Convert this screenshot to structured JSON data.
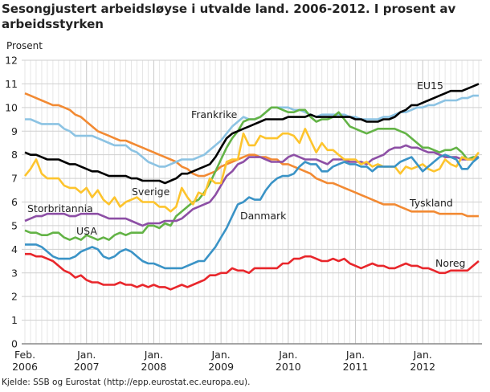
{
  "chart_data": {
    "type": "line",
    "title": "Sesongjustert arbeidsløyse i utvalde land. 2006-2012. I prosent av arbeidsstyrken",
    "ylabel": "Prosent",
    "xlabel": "",
    "source": "Kjelde: SSB og Eurostat (http://epp.eurostat.ec.europa.eu).",
    "ylim": [
      0,
      12
    ],
    "yticks": [
      "0",
      "1",
      "2",
      "3",
      "4",
      "5",
      "6",
      "7",
      "8",
      "9",
      "10",
      "11",
      "12"
    ],
    "x_start": "2006-02",
    "x_end": "2012-11",
    "x_frequency": "monthly",
    "xticks": [
      {
        "line1": "Feb.",
        "line2": "2006"
      },
      {
        "line1": "Jan.",
        "line2": "2007"
      },
      {
        "line1": "Jan.",
        "line2": "2008"
      },
      {
        "line1": "Jan.",
        "line2": "2009"
      },
      {
        "line1": "Jan.",
        "line2": "2010"
      },
      {
        "line1": "Jan.",
        "line2": "2011"
      },
      {
        "line1": "Jan.",
        "line2": "2012"
      }
    ],
    "grid": true,
    "legend": "inline labels",
    "series": [
      {
        "name": "Tyskland",
        "color": "#f28a33",
        "values": [
          10.6,
          10.5,
          10.4,
          10.3,
          10.2,
          10.1,
          10.1,
          10.0,
          9.9,
          9.7,
          9.6,
          9.4,
          9.2,
          9.0,
          8.9,
          8.8,
          8.7,
          8.6,
          8.6,
          8.5,
          8.4,
          8.3,
          8.2,
          8.1,
          8.0,
          7.9,
          7.8,
          7.7,
          7.5,
          7.4,
          7.2,
          7.1,
          7.1,
          7.2,
          7.3,
          7.5,
          7.6,
          7.7,
          7.8,
          7.9,
          8.0,
          8.0,
          7.9,
          7.9,
          7.8,
          7.8,
          7.6,
          7.6,
          7.5,
          7.4,
          7.3,
          7.2,
          7.0,
          6.9,
          6.8,
          6.8,
          6.7,
          6.6,
          6.5,
          6.4,
          6.3,
          6.2,
          6.1,
          6.0,
          5.9,
          5.9,
          5.9,
          5.8,
          5.7,
          5.6,
          5.6,
          5.6,
          5.6,
          5.6,
          5.5,
          5.5,
          5.5,
          5.5,
          5.5,
          5.4,
          5.4,
          5.4
        ]
      },
      {
        "name": "Frankrike",
        "color": "#8cc3e3",
        "values": [
          9.5,
          9.5,
          9.4,
          9.3,
          9.3,
          9.3,
          9.3,
          9.1,
          9.0,
          8.8,
          8.8,
          8.8,
          8.8,
          8.7,
          8.6,
          8.5,
          8.4,
          8.4,
          8.4,
          8.2,
          8.1,
          7.9,
          7.7,
          7.6,
          7.5,
          7.5,
          7.6,
          7.7,
          7.8,
          7.8,
          7.8,
          7.9,
          8.0,
          8.2,
          8.4,
          8.6,
          8.9,
          9.2,
          9.4,
          9.6,
          9.5,
          9.5,
          9.6,
          9.8,
          10.0,
          10.0,
          10.0,
          10.0,
          9.9,
          9.9,
          9.8,
          9.7,
          9.6,
          9.7,
          9.7,
          9.7,
          9.7,
          9.7,
          9.6,
          9.6,
          9.5,
          9.5,
          9.5,
          9.5,
          9.6,
          9.6,
          9.7,
          9.8,
          9.8,
          9.9,
          10.0,
          10.0,
          10.1,
          10.1,
          10.2,
          10.3,
          10.3,
          10.3,
          10.4,
          10.4,
          10.5,
          10.5
        ]
      },
      {
        "name": "USA",
        "color": "#63b346",
        "values": [
          4.8,
          4.7,
          4.7,
          4.6,
          4.6,
          4.7,
          4.7,
          4.5,
          4.4,
          4.5,
          4.4,
          4.6,
          4.5,
          4.4,
          4.5,
          4.4,
          4.6,
          4.7,
          4.6,
          4.7,
          4.7,
          4.7,
          5.0,
          5.0,
          4.9,
          5.1,
          5.0,
          5.4,
          5.6,
          5.8,
          6.0,
          6.1,
          6.4,
          6.8,
          7.3,
          7.8,
          8.3,
          8.7,
          9.0,
          9.4,
          9.5,
          9.5,
          9.6,
          9.8,
          10.0,
          10.0,
          9.9,
          9.8,
          9.8,
          9.9,
          9.9,
          9.6,
          9.4,
          9.5,
          9.5,
          9.6,
          9.8,
          9.5,
          9.2,
          9.1,
          9.0,
          8.9,
          9.0,
          9.1,
          9.1,
          9.1,
          9.1,
          9.0,
          8.9,
          8.7,
          8.5,
          8.3,
          8.3,
          8.2,
          8.1,
          8.2,
          8.2,
          8.3,
          8.1,
          7.8,
          7.9,
          7.9
        ]
      },
      {
        "name": "Storbritannia",
        "color": "#8d4fa5",
        "values": [
          5.2,
          5.3,
          5.4,
          5.4,
          5.5,
          5.5,
          5.5,
          5.5,
          5.4,
          5.4,
          5.5,
          5.5,
          5.5,
          5.5,
          5.4,
          5.3,
          5.3,
          5.3,
          5.3,
          5.2,
          5.1,
          5.0,
          5.1,
          5.1,
          5.1,
          5.2,
          5.2,
          5.2,
          5.3,
          5.5,
          5.7,
          5.8,
          5.9,
          6.0,
          6.3,
          6.7,
          7.1,
          7.3,
          7.6,
          7.7,
          7.9,
          7.9,
          7.9,
          7.8,
          7.7,
          7.7,
          7.7,
          7.9,
          8.0,
          7.9,
          7.8,
          7.8,
          7.8,
          7.7,
          7.6,
          7.8,
          7.8,
          7.8,
          7.7,
          7.7,
          7.7,
          7.6,
          7.8,
          7.9,
          8.0,
          8.2,
          8.3,
          8.3,
          8.4,
          8.3,
          8.3,
          8.2,
          8.1,
          8.1,
          8.0,
          7.9,
          7.9,
          7.9,
          7.8,
          7.8,
          7.8,
          7.9
        ]
      },
      {
        "name": "Sverige",
        "color": "#fdc42d",
        "values": [
          7.1,
          7.4,
          7.8,
          7.2,
          7.0,
          7.0,
          7.0,
          6.7,
          6.6,
          6.6,
          6.4,
          6.6,
          6.2,
          6.5,
          6.1,
          5.9,
          6.2,
          5.8,
          6.0,
          6.1,
          6.2,
          6.0,
          6.0,
          6.0,
          5.8,
          5.8,
          5.6,
          5.8,
          6.6,
          6.2,
          5.9,
          6.4,
          6.3,
          7.0,
          6.8,
          6.8,
          7.7,
          7.8,
          7.8,
          8.9,
          8.4,
          8.4,
          8.8,
          8.7,
          8.7,
          8.7,
          8.9,
          8.9,
          8.8,
          8.5,
          9.1,
          8.6,
          8.1,
          8.5,
          8.2,
          8.2,
          8.0,
          7.8,
          7.8,
          7.8,
          7.6,
          7.7,
          7.5,
          7.6,
          7.5,
          7.5,
          7.5,
          7.2,
          7.5,
          7.4,
          7.5,
          7.6,
          7.4,
          7.3,
          7.4,
          7.8,
          7.6,
          7.5,
          7.9,
          7.8,
          7.8,
          8.1
        ]
      },
      {
        "name": "Danmark",
        "color": "#3a93c6",
        "values": [
          4.2,
          4.2,
          4.2,
          4.1,
          3.9,
          3.7,
          3.6,
          3.6,
          3.6,
          3.7,
          3.9,
          4.0,
          4.1,
          4.0,
          3.7,
          3.6,
          3.7,
          3.9,
          4.0,
          3.9,
          3.7,
          3.5,
          3.4,
          3.4,
          3.3,
          3.2,
          3.2,
          3.2,
          3.2,
          3.3,
          3.4,
          3.5,
          3.5,
          3.8,
          4.1,
          4.5,
          4.9,
          5.4,
          5.9,
          6.0,
          6.2,
          6.1,
          6.1,
          6.5,
          6.8,
          7.0,
          7.1,
          7.1,
          7.2,
          7.5,
          7.7,
          7.6,
          7.6,
          7.3,
          7.3,
          7.5,
          7.6,
          7.7,
          7.6,
          7.6,
          7.5,
          7.5,
          7.3,
          7.5,
          7.5,
          7.5,
          7.5,
          7.7,
          7.8,
          7.9,
          7.6,
          7.3,
          7.5,
          7.7,
          7.9,
          8.0,
          7.9,
          7.8,
          7.4,
          7.4,
          7.7,
          7.9
        ]
      },
      {
        "name": "EU15",
        "color": "#000000",
        "values": [
          8.1,
          8.0,
          8.0,
          7.9,
          7.8,
          7.8,
          7.8,
          7.7,
          7.6,
          7.6,
          7.5,
          7.4,
          7.3,
          7.3,
          7.2,
          7.1,
          7.1,
          7.1,
          7.1,
          7.0,
          7.0,
          6.9,
          6.9,
          6.9,
          6.9,
          6.8,
          6.9,
          7.0,
          7.2,
          7.2,
          7.3,
          7.4,
          7.5,
          7.6,
          7.9,
          8.3,
          8.7,
          8.9,
          9.0,
          9.1,
          9.2,
          9.3,
          9.4,
          9.5,
          9.5,
          9.5,
          9.5,
          9.6,
          9.6,
          9.6,
          9.6,
          9.7,
          9.6,
          9.6,
          9.6,
          9.6,
          9.6,
          9.6,
          9.6,
          9.5,
          9.5,
          9.4,
          9.4,
          9.4,
          9.5,
          9.5,
          9.6,
          9.8,
          9.9,
          10.1,
          10.1,
          10.2,
          10.3,
          10.4,
          10.5,
          10.6,
          10.7,
          10.7,
          10.7,
          10.8,
          10.9,
          11.0
        ]
      },
      {
        "name": "Noreg",
        "color": "#e8262b",
        "values": [
          3.8,
          3.8,
          3.7,
          3.7,
          3.6,
          3.5,
          3.3,
          3.1,
          3.0,
          2.8,
          2.9,
          2.7,
          2.6,
          2.6,
          2.5,
          2.5,
          2.5,
          2.6,
          2.5,
          2.5,
          2.4,
          2.5,
          2.4,
          2.5,
          2.4,
          2.4,
          2.3,
          2.4,
          2.5,
          2.4,
          2.5,
          2.6,
          2.7,
          2.9,
          2.9,
          3.0,
          3.0,
          3.2,
          3.1,
          3.1,
          3.0,
          3.2,
          3.2,
          3.2,
          3.2,
          3.2,
          3.4,
          3.4,
          3.6,
          3.6,
          3.7,
          3.7,
          3.6,
          3.5,
          3.5,
          3.6,
          3.5,
          3.6,
          3.4,
          3.3,
          3.2,
          3.3,
          3.4,
          3.3,
          3.3,
          3.2,
          3.2,
          3.3,
          3.4,
          3.3,
          3.3,
          3.2,
          3.2,
          3.1,
          3.0,
          3.0,
          3.1,
          3.1,
          3.1,
          3.1,
          3.3,
          3.5
        ]
      }
    ]
  }
}
